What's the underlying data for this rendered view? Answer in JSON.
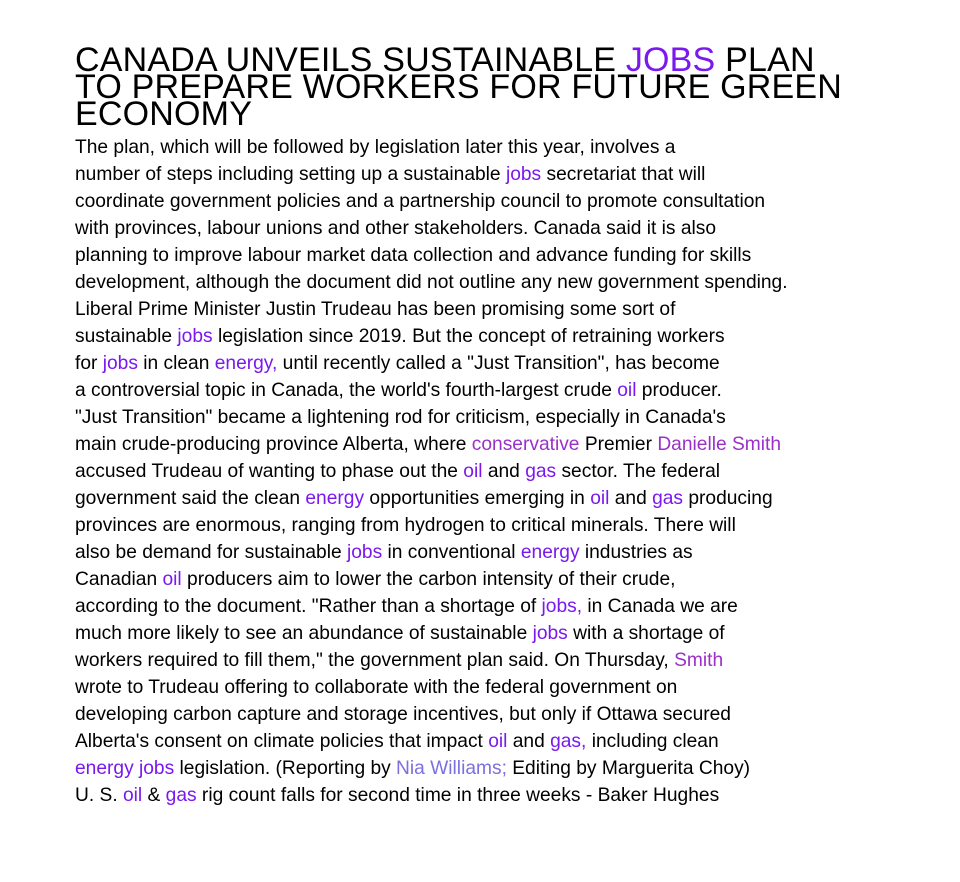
{
  "headline": [
    [
      {
        "t": "CANADA UNVEILS SUSTAINABLE "
      },
      {
        "t": "JOBS",
        "c": "purple"
      },
      {
        "t": " PLAN"
      }
    ],
    [
      {
        "t": "TO PREPARE WORKERS FOR FUTURE GREEN"
      }
    ],
    [
      {
        "t": "ECONOMY"
      }
    ]
  ],
  "body_lines": [
    [
      {
        "t": "The plan, which will be followed by legislation later this year, involves a"
      }
    ],
    [
      {
        "t": "number of steps including setting up a sustainable "
      },
      {
        "t": "jobs",
        "c": "purple"
      },
      {
        "t": " secretariat that will"
      }
    ],
    [
      {
        "t": "coordinate government policies and a partnership council to promote consultation"
      }
    ],
    [
      {
        "t": "with provinces, labour unions and other stakeholders. Canada said it is also"
      }
    ],
    [
      {
        "t": "planning to improve labour market data collection and advance funding for skills"
      }
    ],
    [
      {
        "t": "development, although the document did not outline any new government spending."
      }
    ],
    [
      {
        "t": "Liberal Prime Minister Justin Trudeau has been promising some sort of"
      }
    ],
    [
      {
        "t": "sustainable "
      },
      {
        "t": "jobs",
        "c": "purple"
      },
      {
        "t": " legislation since 2019. But the concept of retraining workers"
      }
    ],
    [
      {
        "t": "for "
      },
      {
        "t": "jobs",
        "c": "purple"
      },
      {
        "t": " in clean "
      },
      {
        "t": "energy,",
        "c": "purple"
      },
      {
        "t": " until recently called a \"Just Transition\", has become"
      }
    ],
    [
      {
        "t": "a controversial topic in Canada, the world's fourth-largest crude "
      },
      {
        "t": "oil",
        "c": "purple"
      },
      {
        "t": " producer."
      }
    ],
    [
      {
        "t": "\"Just Transition\" became a lightening rod for criticism, especially in Canada's"
      }
    ],
    [
      {
        "t": "main crude-producing province Alberta, where "
      },
      {
        "t": "conservative",
        "c": "violet"
      },
      {
        "t": " Premier "
      },
      {
        "t": "Danielle Smith",
        "c": "person"
      }
    ],
    [
      {
        "t": "accused Trudeau of wanting to phase out the "
      },
      {
        "t": "oil",
        "c": "purple"
      },
      {
        "t": " and "
      },
      {
        "t": "gas",
        "c": "purple"
      },
      {
        "t": " sector. The federal"
      }
    ],
    [
      {
        "t": "government said the clean "
      },
      {
        "t": "energy",
        "c": "purple"
      },
      {
        "t": " opportunities emerging in "
      },
      {
        "t": "oil",
        "c": "purple"
      },
      {
        "t": " and "
      },
      {
        "t": "gas",
        "c": "purple"
      },
      {
        "t": " producing"
      }
    ],
    [
      {
        "t": "provinces are enormous, ranging from hydrogen to critical minerals. There will"
      }
    ],
    [
      {
        "t": "also be demand for sustainable "
      },
      {
        "t": "jobs",
        "c": "purple"
      },
      {
        "t": " in conventional "
      },
      {
        "t": "energy",
        "c": "purple"
      },
      {
        "t": " industries as"
      }
    ],
    [
      {
        "t": "Canadian "
      },
      {
        "t": "oil",
        "c": "purple"
      },
      {
        "t": " producers aim to lower the carbon intensity of their crude,"
      }
    ],
    [
      {
        "t": "according to the document. \"Rather than a shortage of "
      },
      {
        "t": "jobs,",
        "c": "purple"
      },
      {
        "t": " in Canada we are"
      }
    ],
    [
      {
        "t": "much more likely to see an abundance of sustainable "
      },
      {
        "t": "jobs",
        "c": "purple"
      },
      {
        "t": " with a shortage of"
      }
    ],
    [
      {
        "t": "workers required to fill them,\" the government plan said. On Thursday, "
      },
      {
        "t": "Smith",
        "c": "person"
      }
    ],
    [
      {
        "t": "wrote to Trudeau offering to collaborate with the federal government on"
      }
    ],
    [
      {
        "t": "developing carbon capture and storage incentives, but only if Ottawa secured"
      }
    ],
    [
      {
        "t": "Alberta's consent on climate policies that impact "
      },
      {
        "t": "oil",
        "c": "purple"
      },
      {
        "t": " and "
      },
      {
        "t": "gas,",
        "c": "purple"
      },
      {
        "t": " including clean"
      }
    ],
    [
      {
        "t": "energy jobs",
        "c": "purple"
      },
      {
        "t": " legislation. (Reporting by "
      },
      {
        "t": "Nia Williams;",
        "c": "light"
      },
      {
        "t": " Editing by Marguerita Choy)"
      }
    ],
    [
      {
        "t": "U. S. "
      },
      {
        "t": "oil",
        "c": "purple"
      },
      {
        "t": " & "
      },
      {
        "t": "gas",
        "c": "purple"
      },
      {
        "t": " rig count falls for second time in three weeks - Baker Hughes"
      }
    ]
  ],
  "colors": {
    "text": "#000000",
    "purple": "#7a18ee",
    "violet": "#9b30c8",
    "person": "#9b30c8",
    "light": "#7c6fe0"
  }
}
